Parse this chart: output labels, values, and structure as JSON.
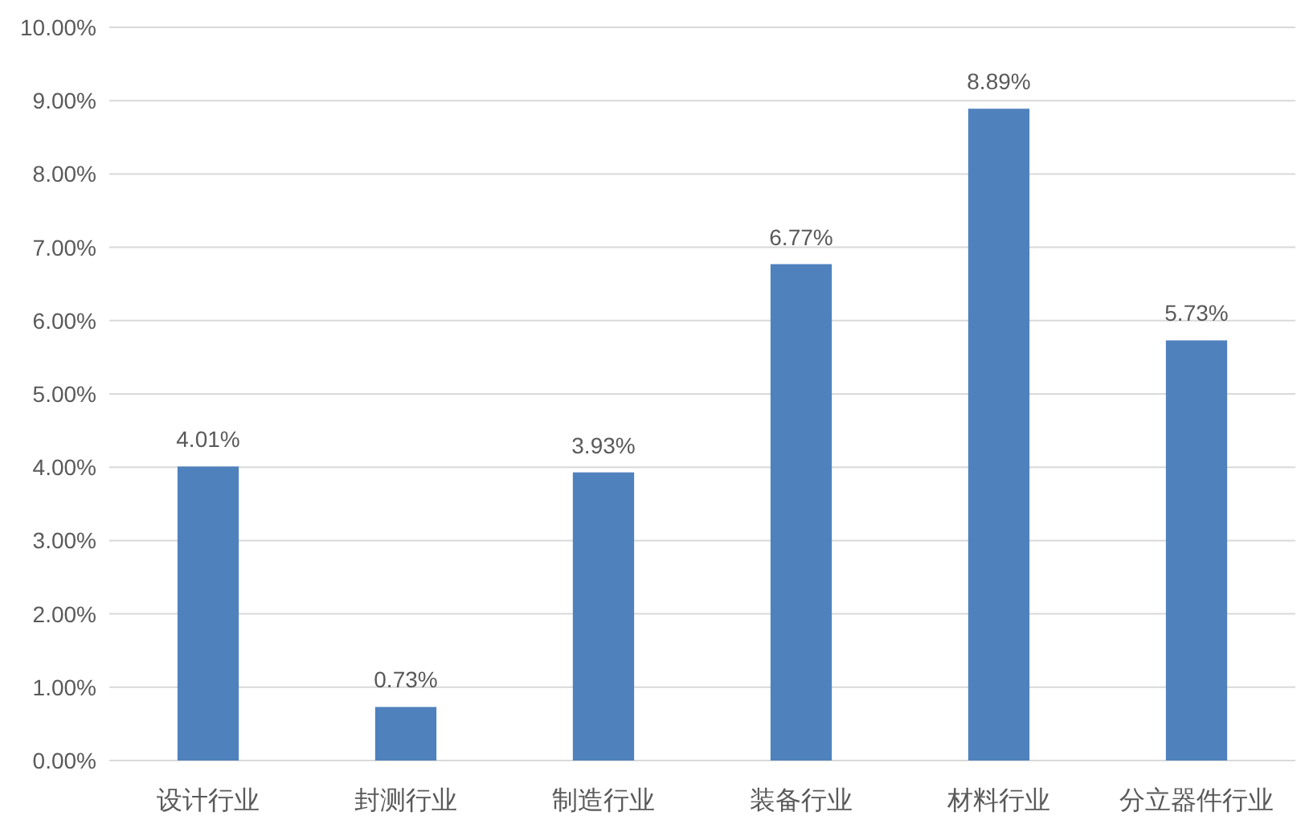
{
  "chart_data": {
    "type": "bar",
    "categories": [
      "设计行业",
      "封测行业",
      "制造行业",
      "装备行业",
      "材料行业",
      "分立器件行业"
    ],
    "values": [
      4.01,
      0.73,
      3.93,
      6.77,
      8.89,
      5.73
    ],
    "value_labels": [
      "4.01%",
      "0.73%",
      "3.93%",
      "6.77%",
      "8.89%",
      "5.73%"
    ],
    "color": "#4f81bd",
    "ylim": [
      0,
      10
    ],
    "yticks": [
      {
        "value": 0,
        "label": "0.00%"
      },
      {
        "value": 1,
        "label": "1.00%"
      },
      {
        "value": 2,
        "label": "2.00%"
      },
      {
        "value": 3,
        "label": "3.00%"
      },
      {
        "value": 4,
        "label": "4.00%"
      },
      {
        "value": 5,
        "label": "5.00%"
      },
      {
        "value": 6,
        "label": "6.00%"
      },
      {
        "value": 7,
        "label": "7.00%"
      },
      {
        "value": 8,
        "label": "8.00%"
      },
      {
        "value": 9,
        "label": "9.00%"
      },
      {
        "value": 10,
        "label": "10.00%"
      }
    ],
    "grid": "y"
  }
}
